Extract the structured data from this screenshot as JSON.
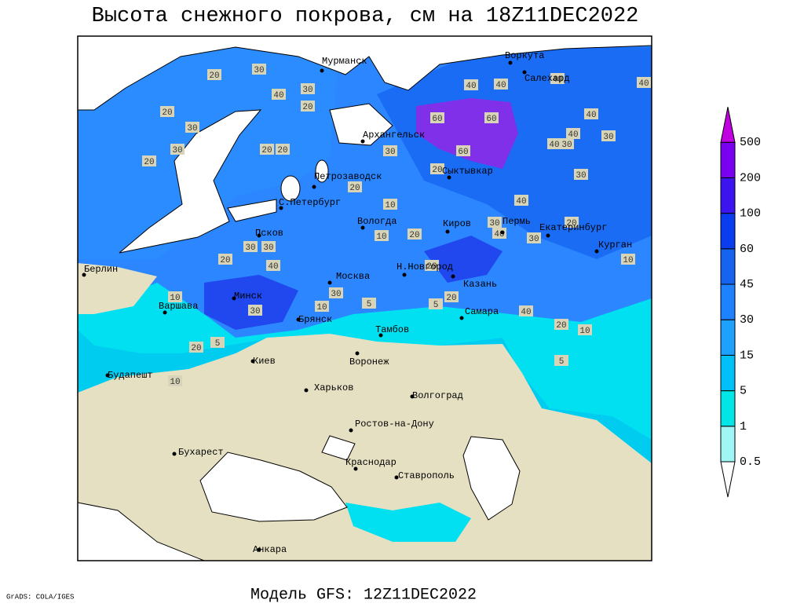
{
  "title": "Высота снежного покрова, см на 18Z11DEC2022",
  "subtitle": "Модель GFS: 12Z11DEC2022",
  "credit": "GrADS: COLA/IGES",
  "cities": [
    "Мурманск",
    "Архангельск",
    "Воркута",
    "Салехард",
    "Петрозаводск",
    "С.Петербург",
    "Сыктывкар",
    "Вологда",
    "Псков",
    "Киров",
    "Пермь",
    "Екатеринбург",
    "Курган",
    "Берлин",
    "Н.Новгород",
    "Москва",
    "Казань",
    "Минск",
    "Варшава",
    "Самара",
    "Брянск",
    "Тамбов",
    "Киев",
    "Воронеж",
    "Будапешт",
    "Харьков",
    "Волгоград",
    "Ростов-на-Дону",
    "Бухарест",
    "Краснодар",
    "Ставрополь",
    "Анкара"
  ],
  "contour_labels": [
    20,
    30,
    40,
    30,
    20,
    20,
    30,
    30,
    20,
    20,
    20,
    40,
    40,
    40,
    40,
    60,
    60,
    30,
    60,
    20,
    40,
    40,
    40,
    30,
    30,
    30,
    20,
    10,
    40,
    30,
    40,
    30,
    20,
    10,
    20,
    30,
    30,
    20,
    40,
    20,
    20,
    30,
    5,
    10,
    5,
    30,
    10,
    20,
    5,
    40,
    20,
    10,
    10,
    5,
    10
  ],
  "legend": {
    "levels": [
      0.5,
      1,
      5,
      15,
      30,
      45,
      60,
      100,
      200,
      500
    ],
    "colors": [
      "#ffffff",
      "#a0f5f5",
      "#00e6e6",
      "#00c0f8",
      "#1ea0ff",
      "#1e82ff",
      "#1464f0",
      "#0a3cf0",
      "#3c14f0",
      "#7a00f0",
      "#c000e0"
    ]
  }
}
